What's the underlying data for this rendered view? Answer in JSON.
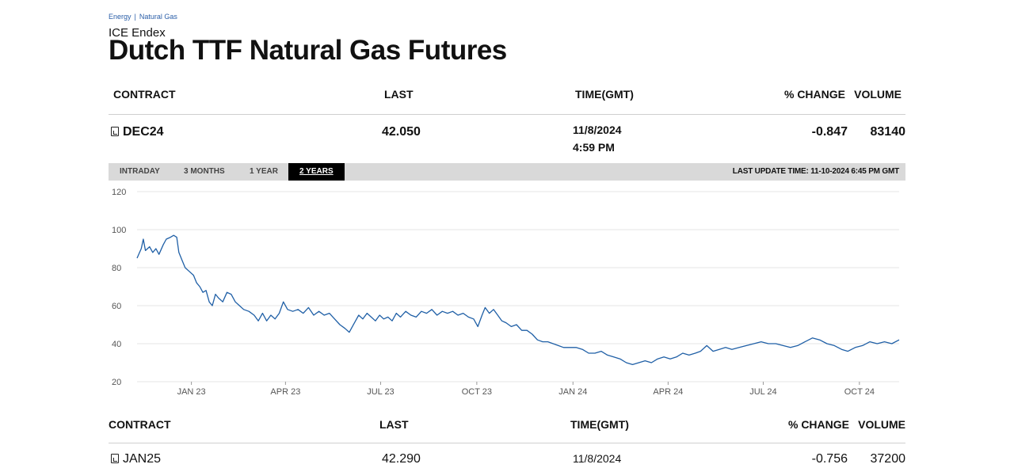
{
  "breadcrumb": {
    "items": [
      "Energy",
      "Natural Gas"
    ],
    "separator": "|"
  },
  "exchange": "ICE Endex",
  "title": "Dutch TTF Natural Gas Futures",
  "table_headers": {
    "contract": "CONTRACT",
    "last": "LAST",
    "time": "TIME(GMT)",
    "change": "% CHANGE",
    "volume": "VOLUME"
  },
  "rows": [
    {
      "contract": "DEC24",
      "last": "42.050",
      "date": "11/8/2024",
      "time": "4:59 PM",
      "change": "-0.847",
      "volume": "83140"
    },
    {
      "contract": "JAN25",
      "last": "42.290",
      "date": "11/8/2024",
      "change": "-0.756",
      "volume": "37200"
    }
  ],
  "tabs": [
    "INTRADAY",
    "3 MONTHS",
    "1 YEAR",
    "2 YEARS"
  ],
  "active_tab": "2 YEARS",
  "last_update": "LAST UPDATE TIME: 11-10-2024 6:45 PM GMT",
  "colors": {
    "line": "#1f5fa6",
    "grid": "#e6e6e6",
    "toolbar": "#d9d9d9"
  },
  "icons": {
    "contract_icon": "document-chart-icon"
  },
  "chart_data": {
    "type": "line",
    "title": "",
    "xlabel": "",
    "ylabel": "",
    "ylim": [
      20,
      120
    ],
    "yticks": [
      20,
      40,
      60,
      80,
      100,
      120
    ],
    "xlim": [
      "2022-11-10",
      "2024-11-08"
    ],
    "xticks": [
      {
        "label": "JAN 23",
        "date": "2023-01-01"
      },
      {
        "label": "APR 23",
        "date": "2023-04-01"
      },
      {
        "label": "JUL 23",
        "date": "2023-07-01"
      },
      {
        "label": "OCT 23",
        "date": "2023-10-01"
      },
      {
        "label": "JAN 24",
        "date": "2024-01-01"
      },
      {
        "label": "APR 24",
        "date": "2024-04-01"
      },
      {
        "label": "JUL 24",
        "date": "2024-07-01"
      },
      {
        "label": "OCT 24",
        "date": "2024-10-01"
      }
    ],
    "grid": true,
    "series": [
      {
        "points": [
          [
            "2022-11-10",
            85
          ],
          [
            "2022-11-14",
            90
          ],
          [
            "2022-11-16",
            95
          ],
          [
            "2022-11-18",
            89
          ],
          [
            "2022-11-22",
            91
          ],
          [
            "2022-11-25",
            88
          ],
          [
            "2022-11-28",
            90
          ],
          [
            "2022-12-01",
            87
          ],
          [
            "2022-12-05",
            92
          ],
          [
            "2022-12-08",
            95
          ],
          [
            "2022-12-12",
            96
          ],
          [
            "2022-12-15",
            97
          ],
          [
            "2022-12-18",
            96
          ],
          [
            "2022-12-20",
            88
          ],
          [
            "2022-12-23",
            84
          ],
          [
            "2022-12-26",
            80
          ],
          [
            "2022-12-30",
            78
          ],
          [
            "2023-01-03",
            76
          ],
          [
            "2023-01-06",
            72
          ],
          [
            "2023-01-09",
            70
          ],
          [
            "2023-01-12",
            67
          ],
          [
            "2023-01-15",
            68
          ],
          [
            "2023-01-18",
            62
          ],
          [
            "2023-01-21",
            60
          ],
          [
            "2023-01-24",
            66
          ],
          [
            "2023-01-27",
            64
          ],
          [
            "2023-01-31",
            62
          ],
          [
            "2023-02-04",
            67
          ],
          [
            "2023-02-08",
            66
          ],
          [
            "2023-02-12",
            62
          ],
          [
            "2023-02-16",
            60
          ],
          [
            "2023-02-20",
            58
          ],
          [
            "2023-02-25",
            57
          ],
          [
            "2023-03-02",
            55
          ],
          [
            "2023-03-06",
            52
          ],
          [
            "2023-03-10",
            56
          ],
          [
            "2023-03-14",
            52
          ],
          [
            "2023-03-18",
            55
          ],
          [
            "2023-03-22",
            53
          ],
          [
            "2023-03-26",
            56
          ],
          [
            "2023-03-30",
            62
          ],
          [
            "2023-04-03",
            58
          ],
          [
            "2023-04-08",
            57
          ],
          [
            "2023-04-13",
            58
          ],
          [
            "2023-04-18",
            56
          ],
          [
            "2023-04-23",
            59
          ],
          [
            "2023-04-28",
            55
          ],
          [
            "2023-05-03",
            57
          ],
          [
            "2023-05-08",
            55
          ],
          [
            "2023-05-13",
            56
          ],
          [
            "2023-05-18",
            53
          ],
          [
            "2023-05-23",
            50
          ],
          [
            "2023-05-28",
            48
          ],
          [
            "2023-06-01",
            46
          ],
          [
            "2023-06-04",
            49
          ],
          [
            "2023-06-07",
            52
          ],
          [
            "2023-06-10",
            55
          ],
          [
            "2023-06-14",
            53
          ],
          [
            "2023-06-18",
            56
          ],
          [
            "2023-06-22",
            54
          ],
          [
            "2023-06-26",
            52
          ],
          [
            "2023-06-30",
            55
          ],
          [
            "2023-07-04",
            53
          ],
          [
            "2023-07-08",
            54
          ],
          [
            "2023-07-12",
            52
          ],
          [
            "2023-07-16",
            56
          ],
          [
            "2023-07-20",
            54
          ],
          [
            "2023-07-25",
            57
          ],
          [
            "2023-07-30",
            55
          ],
          [
            "2023-08-04",
            54
          ],
          [
            "2023-08-09",
            57
          ],
          [
            "2023-08-14",
            56
          ],
          [
            "2023-08-19",
            58
          ],
          [
            "2023-08-24",
            55
          ],
          [
            "2023-08-29",
            57
          ],
          [
            "2023-09-03",
            56
          ],
          [
            "2023-09-08",
            57
          ],
          [
            "2023-09-13",
            55
          ],
          [
            "2023-09-18",
            56
          ],
          [
            "2023-09-23",
            54
          ],
          [
            "2023-09-28",
            53
          ],
          [
            "2023-10-02",
            49
          ],
          [
            "2023-10-06",
            55
          ],
          [
            "2023-10-09",
            59
          ],
          [
            "2023-10-13",
            56
          ],
          [
            "2023-10-17",
            58
          ],
          [
            "2023-10-21",
            55
          ],
          [
            "2023-10-25",
            52
          ],
          [
            "2023-10-29",
            51
          ],
          [
            "2023-11-03",
            49
          ],
          [
            "2023-11-08",
            50
          ],
          [
            "2023-11-13",
            47
          ],
          [
            "2023-11-18",
            47
          ],
          [
            "2023-11-23",
            45
          ],
          [
            "2023-11-28",
            42
          ],
          [
            "2023-12-03",
            41
          ],
          [
            "2023-12-08",
            41
          ],
          [
            "2023-12-13",
            40
          ],
          [
            "2023-12-18",
            39
          ],
          [
            "2023-12-23",
            38
          ],
          [
            "2023-12-29",
            38
          ],
          [
            "2024-01-04",
            38
          ],
          [
            "2024-01-10",
            37
          ],
          [
            "2024-01-16",
            35
          ],
          [
            "2024-01-22",
            35
          ],
          [
            "2024-01-28",
            36
          ],
          [
            "2024-02-03",
            34
          ],
          [
            "2024-02-09",
            33
          ],
          [
            "2024-02-15",
            32
          ],
          [
            "2024-02-21",
            30
          ],
          [
            "2024-02-27",
            29
          ],
          [
            "2024-03-04",
            30
          ],
          [
            "2024-03-10",
            31
          ],
          [
            "2024-03-16",
            30
          ],
          [
            "2024-03-22",
            32
          ],
          [
            "2024-03-28",
            33
          ],
          [
            "2024-04-03",
            32
          ],
          [
            "2024-04-09",
            33
          ],
          [
            "2024-04-15",
            35
          ],
          [
            "2024-04-21",
            34
          ],
          [
            "2024-04-27",
            35
          ],
          [
            "2024-05-02",
            36
          ],
          [
            "2024-05-08",
            39
          ],
          [
            "2024-05-14",
            36
          ],
          [
            "2024-05-20",
            37
          ],
          [
            "2024-05-26",
            38
          ],
          [
            "2024-06-01",
            37
          ],
          [
            "2024-06-08",
            38
          ],
          [
            "2024-06-15",
            39
          ],
          [
            "2024-06-22",
            40
          ],
          [
            "2024-06-29",
            41
          ],
          [
            "2024-07-06",
            40
          ],
          [
            "2024-07-13",
            40
          ],
          [
            "2024-07-20",
            39
          ],
          [
            "2024-07-27",
            38
          ],
          [
            "2024-08-03",
            39
          ],
          [
            "2024-08-10",
            41
          ],
          [
            "2024-08-17",
            43
          ],
          [
            "2024-08-24",
            42
          ],
          [
            "2024-08-31",
            40
          ],
          [
            "2024-09-07",
            39
          ],
          [
            "2024-09-14",
            37
          ],
          [
            "2024-09-20",
            36
          ],
          [
            "2024-09-27",
            38
          ],
          [
            "2024-10-04",
            39
          ],
          [
            "2024-10-11",
            41
          ],
          [
            "2024-10-18",
            40
          ],
          [
            "2024-10-25",
            41
          ],
          [
            "2024-11-01",
            40
          ],
          [
            "2024-11-08",
            42
          ]
        ]
      }
    ]
  }
}
